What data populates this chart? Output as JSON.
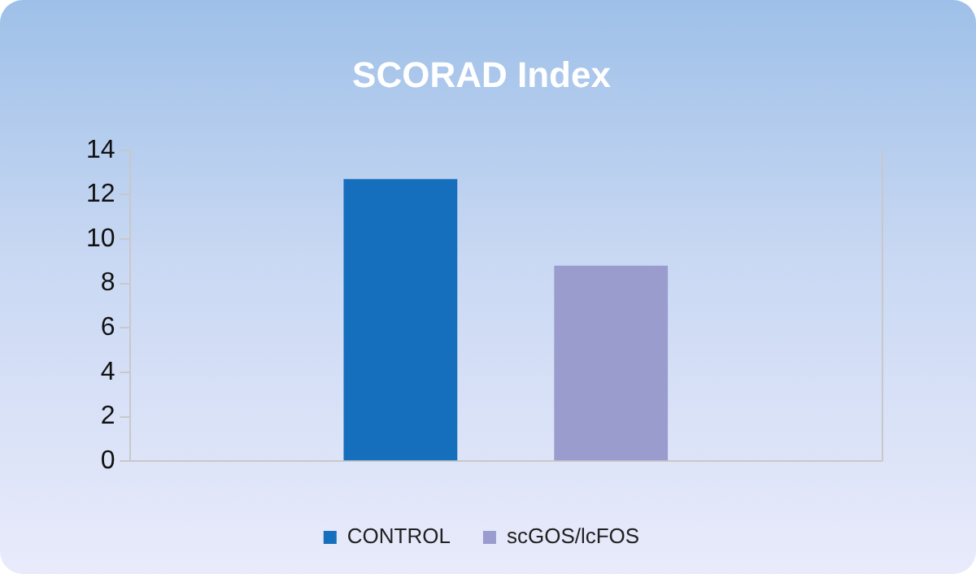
{
  "chart_data": {
    "type": "bar",
    "title": "SCORAD Index",
    "categories": [
      null
    ],
    "series": [
      {
        "name": "CONTROL",
        "color": "#166fbc",
        "values": [
          12.7
        ]
      },
      {
        "name": "scGOS/lcFOS",
        "color": "#999ccd",
        "values": [
          8.8
        ]
      }
    ],
    "ylim": [
      0,
      14
    ],
    "yticks": [
      0,
      2,
      4,
      6,
      8,
      10,
      12,
      14
    ],
    "grid": false,
    "legend": "bottom"
  }
}
